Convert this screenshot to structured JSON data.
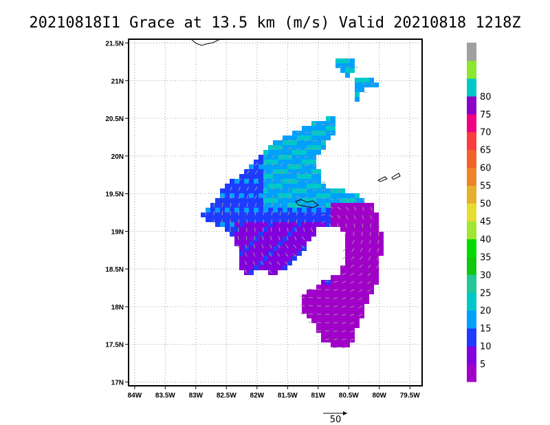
{
  "chart_data": {
    "type": "heatmap",
    "title": "20210818I1 Grace at 13.5 km (m/s) Valid 20210818 1218Z",
    "x_ticks": [
      "84W",
      "83.5W",
      "83W",
      "82.5W",
      "82W",
      "81.5W",
      "81W",
      "80.5W",
      "80W",
      "79.5W"
    ],
    "x_values": [
      -84,
      -83.5,
      -83,
      -82.5,
      -82,
      -81.5,
      -81,
      -80.5,
      -80,
      -79.5
    ],
    "y_ticks": [
      "17N",
      "17.5N",
      "18N",
      "18.5N",
      "19N",
      "19.5N",
      "20N",
      "20.5N",
      "21N",
      "21.5N"
    ],
    "y_values": [
      17,
      17.5,
      18,
      18.5,
      19,
      19.5,
      20,
      20.5,
      21,
      21.5
    ],
    "xlim": [
      -84.1,
      -79.3
    ],
    "ylim": [
      16.95,
      21.55
    ],
    "grid": true,
    "colorbar": {
      "labels": [
        "5",
        "10",
        "15",
        "20",
        "25",
        "30",
        "35",
        "40",
        "45",
        "50",
        "55",
        "60",
        "65",
        "70",
        "75",
        "80"
      ],
      "colors": [
        "#a000c8",
        "#8200dc",
        "#1e3cff",
        "#00a0ff",
        "#00c8c8",
        "#20c896",
        "#10c810",
        "#00dc00",
        "#a0e632",
        "#e6dc32",
        "#e6af2d",
        "#f08228",
        "#f06428",
        "#fa3c3c",
        "#f00082",
        "#8c00c8",
        "#00c8c8",
        "#8ce632",
        "#a0a0a0"
      ]
    },
    "reference_vector": {
      "label": "50",
      "value": 50
    }
  }
}
